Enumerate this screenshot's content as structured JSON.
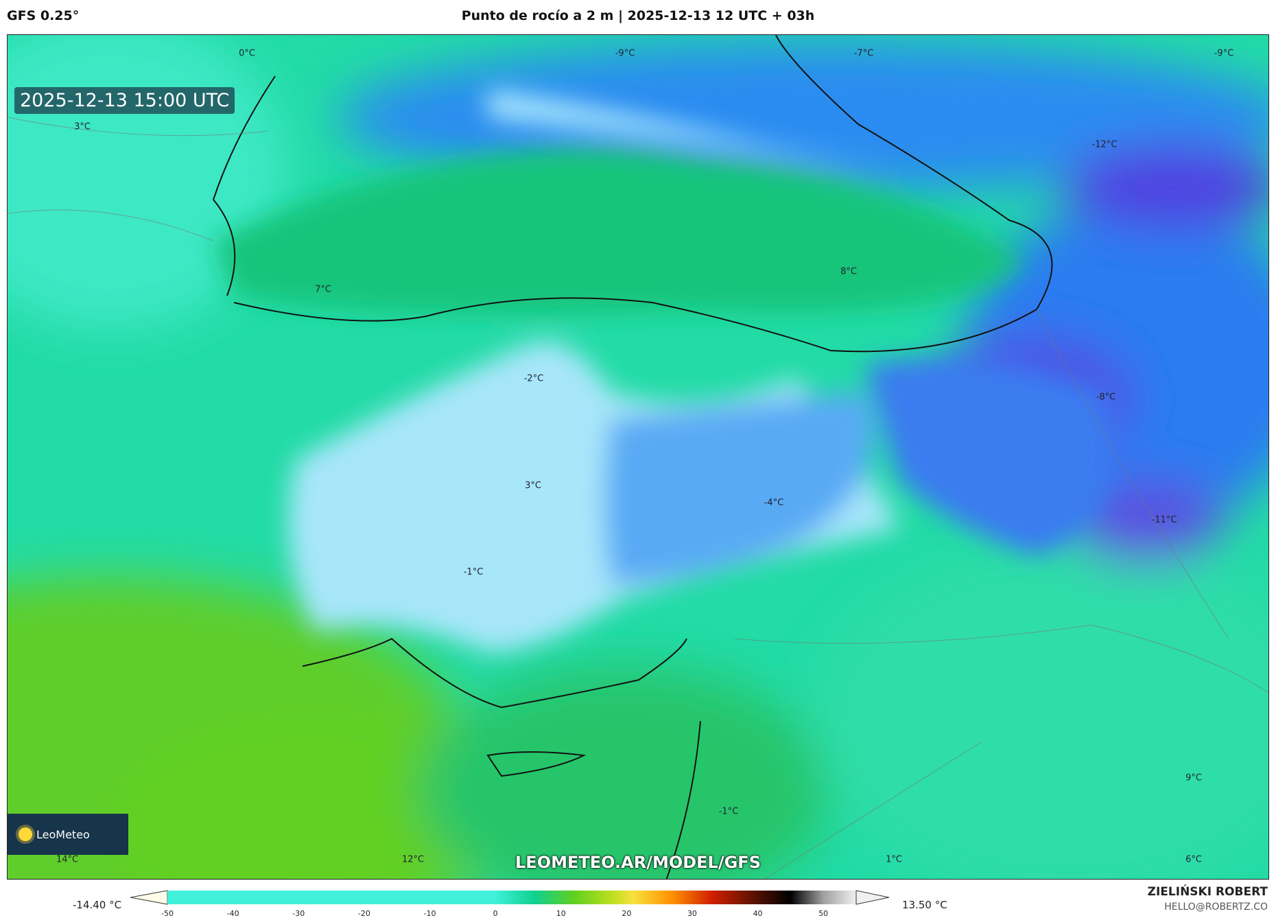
{
  "header": {
    "model": "GFS 0.25°",
    "title": "Punto de rocío a 2 m | 2025-12-13 12 UTC + 03h"
  },
  "map": {
    "valid_time": "2025-12-13 15:00 UTC",
    "labels": [
      "0°C",
      "-9°C",
      "-7°C",
      "-9°C",
      "3°C",
      "-12°C",
      "7°C",
      "8°C",
      "-2°C",
      "-8°C",
      "3°C",
      "-4°C",
      "-11°C",
      "-1°C",
      "9°C",
      "-1°C",
      "14°C",
      "12°C",
      "1°C",
      "6°C"
    ],
    "logo": "LeoMeteo",
    "watermark": "LEOMETEO.AR/MODEL/GFS"
  },
  "colorbar": {
    "min_label": "-14.40 °C",
    "max_label": "13.50 °C",
    "ticks": [
      "-50",
      "-40",
      "-30",
      "-20",
      "-10",
      "0",
      "10",
      "20",
      "30",
      "40",
      "50"
    ],
    "range": [
      -50,
      55
    ],
    "colors": {
      "-50": "#fffbe8",
      "-45": "#8a6a50",
      "-40": "#3a0c0c",
      "-35": "#4a1a80",
      "-25": "#6a30e0",
      "-15": "#4050f0",
      "-8": "#2a8cf0",
      "-2": "#a8e4ff",
      "0": "#40f0d8",
      "6": "#10d090",
      "12": "#60d020",
      "18": "#c0e020",
      "21": "#f8e040",
      "27": "#ff9000",
      "33": "#d02000",
      "40": "#501000",
      "45": "#000000",
      "50": "#a0a0a0",
      "55": "#f0f0f0"
    }
  },
  "author": {
    "name": "ZIELIŃSKI ROBERT",
    "email": "HELLO@ROBERTZ.CO"
  }
}
